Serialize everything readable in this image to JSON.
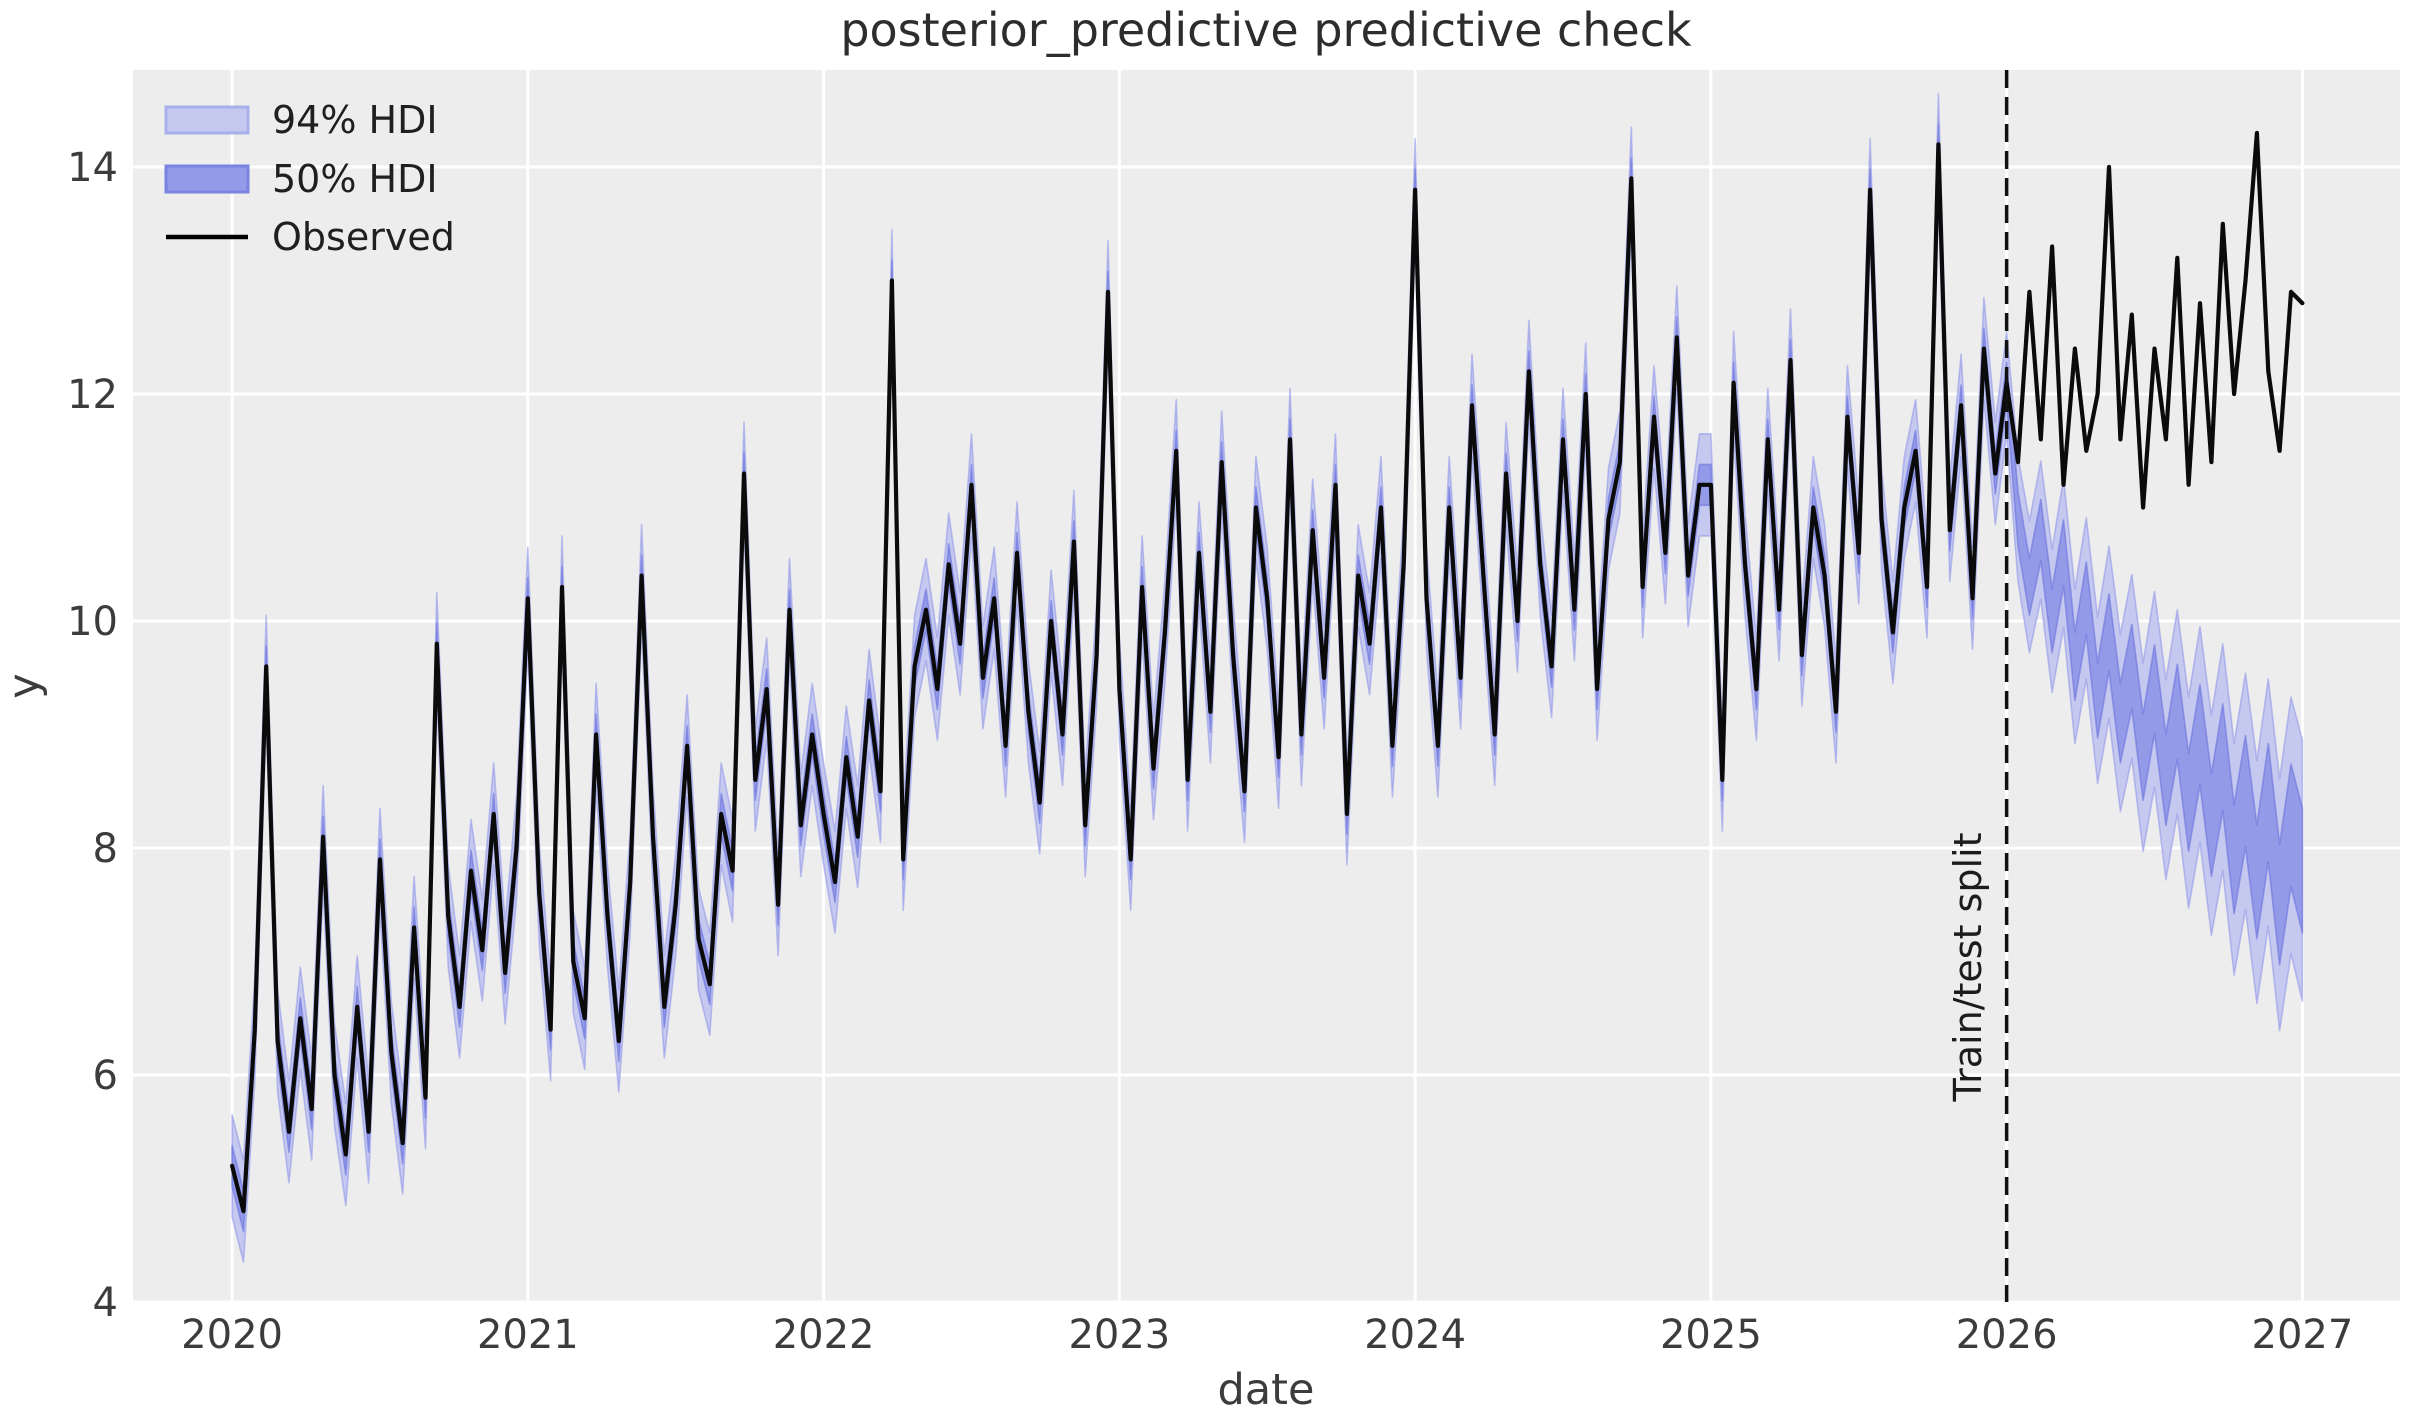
{
  "chart_data": {
    "type": "line",
    "title": "posterior_predictive predictive check",
    "xlabel": "date",
    "ylabel": "y",
    "annotation": "Train/test split",
    "split_x": 2026.0,
    "xlim": [
      2019.665,
      2027.33
    ],
    "ylim": [
      4.0,
      14.855
    ],
    "xticks": [
      2020,
      2021,
      2022,
      2023,
      2024,
      2025,
      2026,
      2027
    ],
    "yticks": [
      4,
      6,
      8,
      10,
      12,
      14
    ],
    "grid": true,
    "legend_position": "upper-left",
    "legend": [
      {
        "label": "94% HDI",
        "type": "patch"
      },
      {
        "label": "50% HDI",
        "type": "patch"
      },
      {
        "label": "Observed",
        "type": "line"
      }
    ],
    "x_start": 2020.0,
    "x_step_years": 0.0384615,
    "observed": [
      5.2,
      4.8,
      6.4,
      9.6,
      6.3,
      5.5,
      6.5,
      5.7,
      8.1,
      6.0,
      5.3,
      6.6,
      5.5,
      7.9,
      6.2,
      5.4,
      7.3,
      5.8,
      9.8,
      7.4,
      6.6,
      7.8,
      7.1,
      8.3,
      6.9,
      8.0,
      10.2,
      7.6,
      6.4,
      10.3,
      7.0,
      6.5,
      9.0,
      7.4,
      6.3,
      7.7,
      10.4,
      8.1,
      6.6,
      7.5,
      8.9,
      7.2,
      6.8,
      8.3,
      7.8,
      11.3,
      8.6,
      9.4,
      7.5,
      10.1,
      8.2,
      9.0,
      8.3,
      7.7,
      8.8,
      8.1,
      9.3,
      8.5,
      13.0,
      7.9,
      9.6,
      10.1,
      9.4,
      10.5,
      9.8,
      11.2,
      9.5,
      10.2,
      8.9,
      10.6,
      9.2,
      8.4,
      10.0,
      9.0,
      10.7,
      8.2,
      9.7,
      12.9,
      9.4,
      7.9,
      10.3,
      8.7,
      9.9,
      11.5,
      8.6,
      10.6,
      9.2,
      11.4,
      9.7,
      8.5,
      11.0,
      10.2,
      8.8,
      11.6,
      9.0,
      10.8,
      9.5,
      11.2,
      8.3,
      10.4,
      9.8,
      11.0,
      8.9,
      10.5,
      13.8,
      10.2,
      8.9,
      11.0,
      9.5,
      11.9,
      10.4,
      9.0,
      11.3,
      10.0,
      12.2,
      10.5,
      9.6,
      11.6,
      10.1,
      12.0,
      9.4,
      10.9,
      11.4,
      13.9,
      10.3,
      11.8,
      10.6,
      12.5,
      10.4,
      11.2,
      11.2,
      8.6,
      12.1,
      10.5,
      9.4,
      11.6,
      10.1,
      12.3,
      9.7,
      11.0,
      10.4,
      9.2,
      11.8,
      10.6,
      13.8,
      10.9,
      9.9,
      11.0,
      11.5,
      10.3,
      14.2,
      10.8,
      11.9,
      10.2,
      12.4,
      11.3,
      12.1,
      11.4,
      12.9,
      11.6,
      13.3,
      11.2,
      12.4,
      11.5,
      12.0,
      14.0,
      11.6,
      12.7,
      11.0,
      12.4,
      11.6,
      13.2,
      11.2,
      12.8,
      11.4,
      13.5,
      12.0,
      13.0,
      14.3,
      12.2,
      11.5,
      12.9,
      12.8
    ],
    "hdi": {
      "train_points": 157,
      "train_h94": 0.45,
      "train_h50": 0.18,
      "test_mean": [
        10.9,
        10.3,
        10.8,
        10.0,
        10.6,
        9.6,
        10.2,
        9.3,
        9.9,
        9.1,
        9.6,
        8.8,
        9.4,
        8.6,
        9.2,
        8.4,
        9.0,
        8.2,
        8.8,
        7.9,
        8.5,
        7.7,
        8.4,
        7.5,
        8.2,
        7.8
      ],
      "test_h94": [
        0.55,
        0.58,
        0.61,
        0.63,
        0.66,
        0.68,
        0.71,
        0.73,
        0.76,
        0.78,
        0.81,
        0.83,
        0.86,
        0.88,
        0.9,
        0.93,
        0.95,
        0.97,
        1.0,
        1.02,
        1.04,
        1.07,
        1.09,
        1.11,
        1.13,
        1.15
      ],
      "test_h50": [
        0.24,
        0.25,
        0.27,
        0.28,
        0.29,
        0.3,
        0.32,
        0.33,
        0.34,
        0.35,
        0.37,
        0.38,
        0.39,
        0.4,
        0.42,
        0.43,
        0.44,
        0.45,
        0.47,
        0.48,
        0.49,
        0.5,
        0.52,
        0.53,
        0.54,
        0.55
      ]
    },
    "style": {
      "plot_bg": "#EDEDEE",
      "grid_color": "#ffffff",
      "hdi94_fill": "#c5c8ef",
      "hdi94_edge": "#8c93e8",
      "hdi50_fill": "#939ae7",
      "hdi50_edge": "#6b73dd",
      "observed_color": "#0b0b0b",
      "split_color": "#111111",
      "split_dash": "18 9",
      "legend_line_color": "#000000"
    }
  }
}
